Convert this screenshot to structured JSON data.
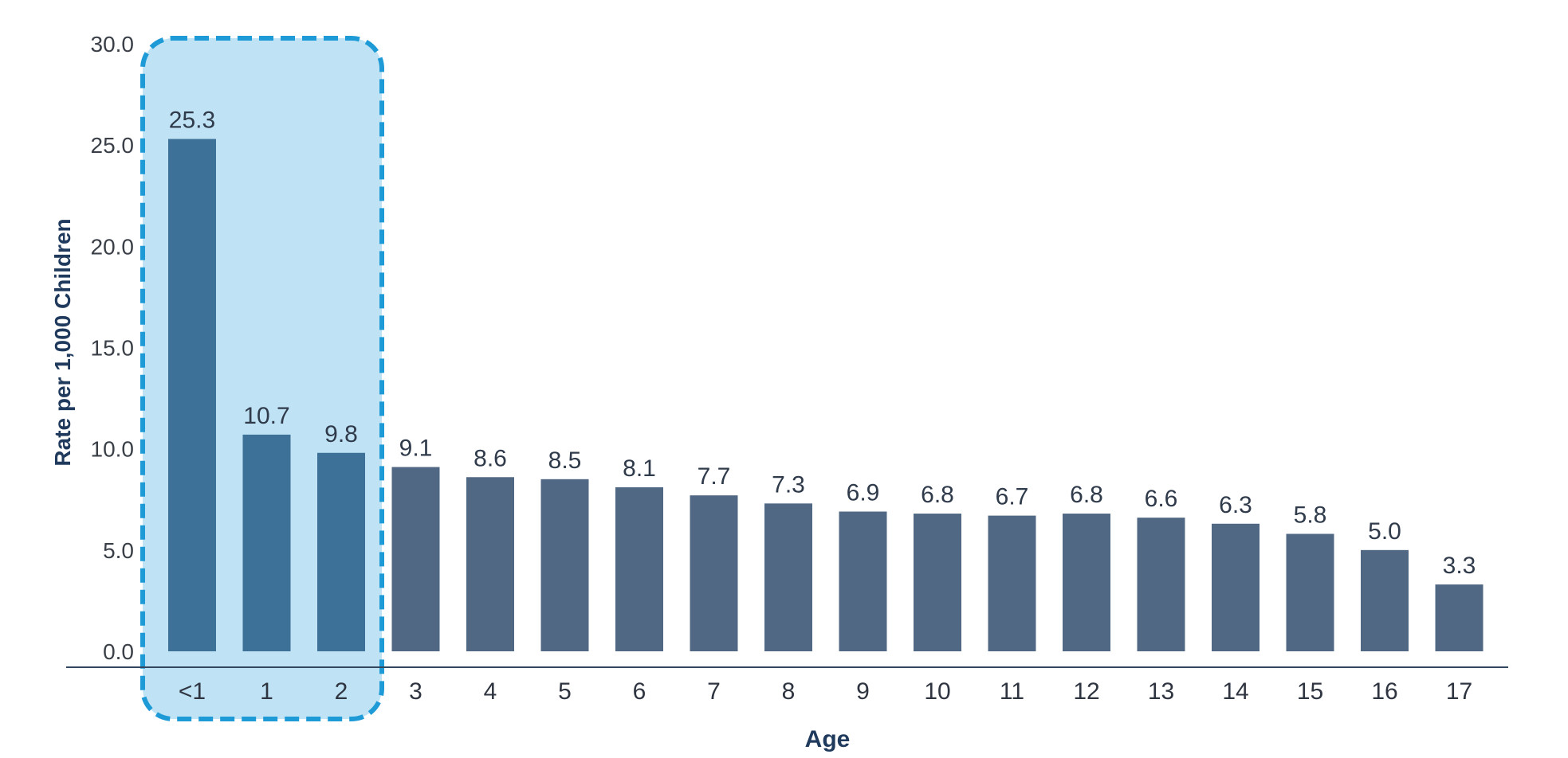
{
  "chart_data": {
    "type": "bar",
    "title": "",
    "xlabel": "Age",
    "ylabel": "Rate per 1,000 Children",
    "ylim": [
      0,
      30
    ],
    "yticks": [
      "0.0",
      "5.0",
      "10.0",
      "15.0",
      "20.0",
      "25.0",
      "30.0"
    ],
    "grid": false,
    "categories": [
      "<1",
      "1",
      "2",
      "3",
      "4",
      "5",
      "6",
      "7",
      "8",
      "9",
      "10",
      "11",
      "12",
      "13",
      "14",
      "15",
      "16",
      "17"
    ],
    "values": [
      25.3,
      10.7,
      9.8,
      9.1,
      8.6,
      8.5,
      8.1,
      7.7,
      7.3,
      6.9,
      6.8,
      6.7,
      6.8,
      6.6,
      6.3,
      5.8,
      5.0,
      3.3
    ],
    "value_labels": [
      "25.3",
      "10.7",
      "9.8",
      "9.1",
      "8.6",
      "8.5",
      "8.1",
      "7.7",
      "7.3",
      "6.9",
      "6.8",
      "6.7",
      "6.8",
      "6.6",
      "6.3",
      "5.8",
      "5.0",
      "3.3"
    ],
    "highlight": {
      "categories": [
        "<1",
        "1",
        "2"
      ],
      "fill": "#bfe3f5",
      "border": "#1e9ad6"
    },
    "colors": {
      "bar": "#506883",
      "highlighted_bar": "#3e7198",
      "axis": "#33485e"
    }
  }
}
